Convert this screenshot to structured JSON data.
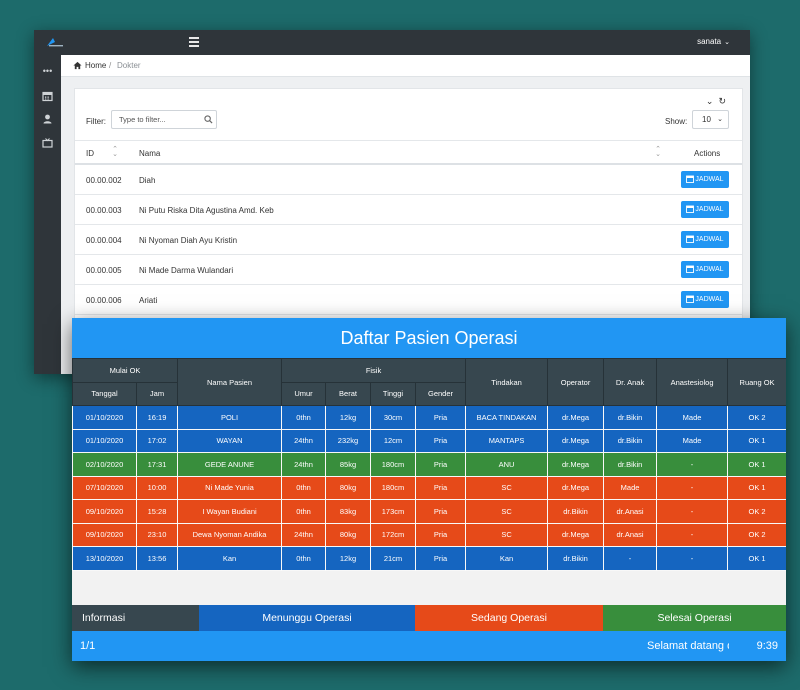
{
  "admin": {
    "user": "sanata",
    "breadcrumb": {
      "home": "Home",
      "separator": "/",
      "current": "Dokter"
    },
    "filter": {
      "label": "Filter:",
      "placeholder": "Type to filter..."
    },
    "show": {
      "label": "Show:",
      "value": "10"
    },
    "table": {
      "headers": {
        "id": "ID",
        "name": "Nama",
        "actions": "Actions"
      },
      "rows": [
        {
          "id": "00.00.002",
          "name": "Diah",
          "action": "JADWAL"
        },
        {
          "id": "00.00.003",
          "name": "Ni Putu Riska Dita Agustina Amd. Keb",
          "action": "JADWAL"
        },
        {
          "id": "00.00.004",
          "name": "Ni Nyoman Diah Ayu Kristin",
          "action": "JADWAL"
        },
        {
          "id": "00.00.005",
          "name": "Ni Made Darma Wulandari",
          "action": "JADWAL"
        },
        {
          "id": "00.00.006",
          "name": "Ariati",
          "action": "JADWAL"
        }
      ]
    },
    "icons": [
      "logo-icon",
      "hamburger-icon",
      "dots-icon",
      "calendar-icon",
      "user-icon",
      "tv-icon",
      "home-icon",
      "search-icon",
      "chevron-down-icon",
      "refresh-icon",
      "sort-icon"
    ]
  },
  "board": {
    "title": "Daftar Pasien Operasi",
    "headers": {
      "mulai_ok": "Mulai OK",
      "tanggal": "Tanggal",
      "jam": "Jam",
      "nama_pasien": "Nama Pasien",
      "fisik": "Fisik",
      "umur": "Umur",
      "berat": "Berat",
      "tinggi": "Tinggi",
      "gender": "Gender",
      "tindakan": "Tindakan",
      "operator": "Operator",
      "dr_anak": "Dr. Anak",
      "anastesiolog": "Anastesiolog",
      "ruang_ok": "Ruang OK"
    },
    "rows": [
      {
        "status": "blue",
        "tanggal": "01/10/2020",
        "jam": "16:19",
        "nama": "POLI",
        "umur": "0thn",
        "berat": "12kg",
        "tinggi": "30cm",
        "gender": "Pria",
        "tindakan": "BACA TINDAKAN",
        "operator": "dr.Mega",
        "dr_anak": "dr.Bikin",
        "anastesiolog": "Made",
        "ruang": "OK 2"
      },
      {
        "status": "blue",
        "tanggal": "01/10/2020",
        "jam": "17:02",
        "nama": "WAYAN",
        "umur": "24thn",
        "berat": "232kg",
        "tinggi": "12cm",
        "gender": "Pria",
        "tindakan": "MANTAPS",
        "operator": "dr.Mega",
        "dr_anak": "dr.Bikin",
        "anastesiolog": "Made",
        "ruang": "OK 1"
      },
      {
        "status": "green",
        "tanggal": "02/10/2020",
        "jam": "17:31",
        "nama": "GEDE ANUNE",
        "umur": "24thn",
        "berat": "85kg",
        "tinggi": "180cm",
        "gender": "Pria",
        "tindakan": "ANU",
        "operator": "dr.Mega",
        "dr_anak": "dr.Bikin",
        "anastesiolog": "-",
        "ruang": "OK 1"
      },
      {
        "status": "orange",
        "tanggal": "07/10/2020",
        "jam": "10:00",
        "nama": "Ni Made Yunia",
        "umur": "0thn",
        "berat": "80kg",
        "tinggi": "180cm",
        "gender": "Pria",
        "tindakan": "SC",
        "operator": "dr.Mega",
        "dr_anak": "Made",
        "anastesiolog": "-",
        "ruang": "OK 1"
      },
      {
        "status": "orange",
        "tanggal": "09/10/2020",
        "jam": "15:28",
        "nama": "I Wayan Budiani",
        "umur": "0thn",
        "berat": "83kg",
        "tinggi": "173cm",
        "gender": "Pria",
        "tindakan": "SC",
        "operator": "dr.Bikin",
        "dr_anak": "dr.Anasi",
        "anastesiolog": "-",
        "ruang": "OK 2"
      },
      {
        "status": "orange",
        "tanggal": "09/10/2020",
        "jam": "23:10",
        "nama": "Dewa Nyoman Andika",
        "umur": "24thn",
        "berat": "80kg",
        "tinggi": "172cm",
        "gender": "Pria",
        "tindakan": "SC",
        "operator": "dr.Mega",
        "dr_anak": "dr.Anasi",
        "anastesiolog": "-",
        "ruang": "OK 2"
      },
      {
        "status": "blue",
        "tanggal": "13/10/2020",
        "jam": "13:56",
        "nama": "Kan",
        "umur": "0thn",
        "berat": "12kg",
        "tinggi": "21cm",
        "gender": "Pria",
        "tindakan": "Kan",
        "operator": "dr.Bikin",
        "dr_anak": "-",
        "anastesiolog": "-",
        "ruang": "OK 1"
      }
    ],
    "legend": {
      "info": "Informasi",
      "waiting": "Menunggu Operasi",
      "in_progress": "Sedang Operasi",
      "done": "Selesai Operasi",
      "colors": {
        "info": "#37474f",
        "waiting": "#1565c0",
        "in_progress": "#e64a19",
        "done": "#388e3c"
      }
    },
    "footer": {
      "page": "1/1",
      "marquee": "Selamat datang di",
      "time": "9:39"
    }
  }
}
